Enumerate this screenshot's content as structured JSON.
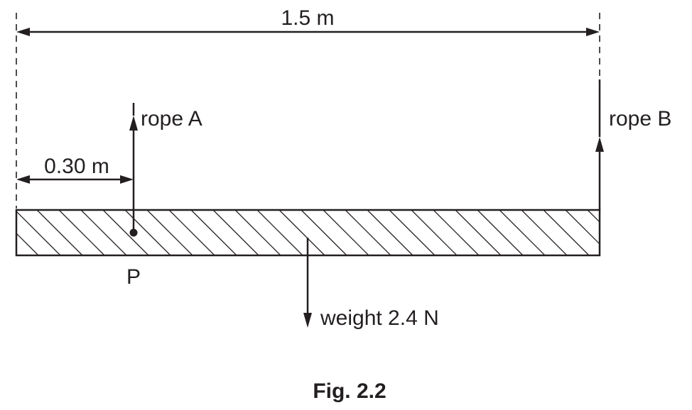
{
  "labels": {
    "length_total": "1.5 m",
    "length_p": "0.30 m",
    "rope_a": "rope A",
    "rope_b": "rope B",
    "point_p": "P",
    "weight": "weight 2.4 N"
  },
  "caption": "Fig. 2.2"
}
